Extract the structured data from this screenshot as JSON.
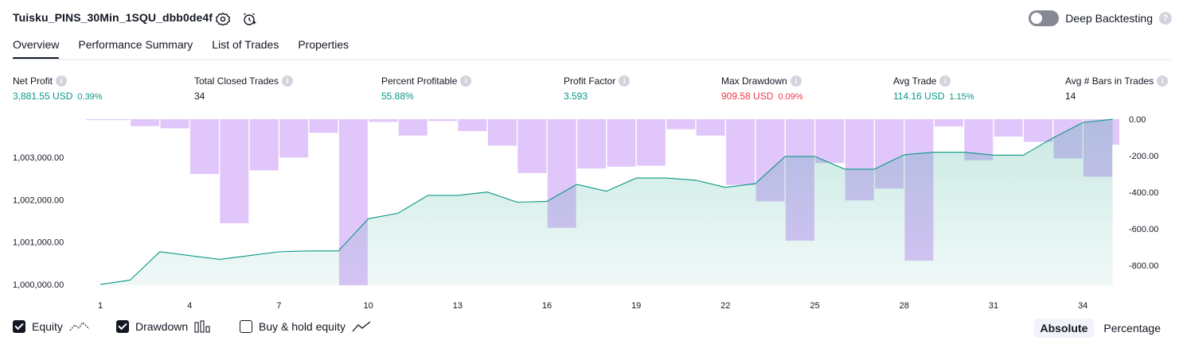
{
  "header": {
    "title": "Tuisku_PINS_30Min_1SQU_dbb0de4f",
    "deep_backtesting_label": "Deep Backtesting",
    "help": "?"
  },
  "tabs": [
    {
      "label": "Overview",
      "active": true
    },
    {
      "label": "Performance Summary",
      "active": false
    },
    {
      "label": "List of Trades",
      "active": false
    },
    {
      "label": "Properties",
      "active": false
    }
  ],
  "metrics": [
    {
      "label": "Net Profit",
      "value": "3,881.55 USD",
      "pct": "0.39%",
      "color": "green"
    },
    {
      "label": "Total Closed Trades",
      "value": "34",
      "pct": "",
      "color": "neutral"
    },
    {
      "label": "Percent Profitable",
      "value": "55.88%",
      "pct": "",
      "color": "green"
    },
    {
      "label": "Profit Factor",
      "value": "3.593",
      "pct": "",
      "color": "green"
    },
    {
      "label": "Max Drawdown",
      "value": "909.58 USD",
      "pct": "0.09%",
      "color": "red"
    },
    {
      "label": "Avg Trade",
      "value": "114.16 USD",
      "pct": "1.15%",
      "color": "green"
    },
    {
      "label": "Avg # Bars in Trades",
      "value": "14",
      "pct": "",
      "color": "neutral"
    }
  ],
  "info_icon": "i",
  "chart_data": {
    "type": "area",
    "x": [
      1,
      2,
      3,
      4,
      5,
      6,
      7,
      8,
      9,
      10,
      11,
      12,
      13,
      14,
      15,
      16,
      17,
      18,
      19,
      20,
      21,
      22,
      23,
      24,
      25,
      26,
      27,
      28,
      29,
      30,
      31,
      32,
      33,
      34,
      35
    ],
    "x_ticks": [
      "1",
      "4",
      "7",
      "10",
      "13",
      "16",
      "19",
      "22",
      "25",
      "28",
      "31",
      "34"
    ],
    "left_axis": {
      "ticks": [
        "1,000,000.00",
        "1,001,000.00",
        "1,002,000.00",
        "1,003,000.00"
      ],
      "range": [
        999980,
        1003900
      ]
    },
    "right_axis": {
      "ticks": [
        "0.00",
        "-200.00",
        "-400.00",
        "-600.00",
        "-800.00"
      ],
      "range": [
        -909.58,
        0
      ]
    },
    "series": [
      {
        "name": "Equity",
        "values": [
          1000000,
          1000100,
          1000770,
          1000680,
          1000590,
          1000680,
          1000770,
          1000790,
          1000790,
          1001550,
          1001680,
          1002100,
          1002100,
          1002180,
          1001940,
          1001960,
          1002360,
          1002200,
          1002510,
          1002510,
          1002460,
          1002290,
          1002380,
          1003020,
          1003020,
          1002720,
          1002720,
          1003060,
          1003120,
          1003120,
          1003050,
          1003050,
          1003460,
          1003820,
          1003900
        ],
        "color": "#089981"
      },
      {
        "name": "Drawdown",
        "values": [
          -5,
          -38,
          -50,
          -300,
          -570,
          -280,
          -210,
          -75,
          -909.58,
          -15,
          -90,
          -10,
          -65,
          -145,
          -295,
          -595,
          -270,
          -260,
          -255,
          -55,
          -90,
          -360,
          -450,
          -665,
          -240,
          -445,
          -380,
          -775,
          -40,
          -225,
          -95,
          -125,
          -215,
          -315,
          -140
        ],
        "color": "#e1c6fb"
      }
    ]
  },
  "legend": [
    {
      "label": "Equity",
      "checked": true,
      "icon": "equity-line-icon"
    },
    {
      "label": "Drawdown",
      "checked": true,
      "icon": "drawdown-bars-icon"
    },
    {
      "label": "Buy & hold equity",
      "checked": false,
      "icon": "buy-hold-line-icon"
    }
  ],
  "modes": [
    {
      "label": "Absolute",
      "active": true
    },
    {
      "label": "Percentage",
      "active": false
    }
  ]
}
